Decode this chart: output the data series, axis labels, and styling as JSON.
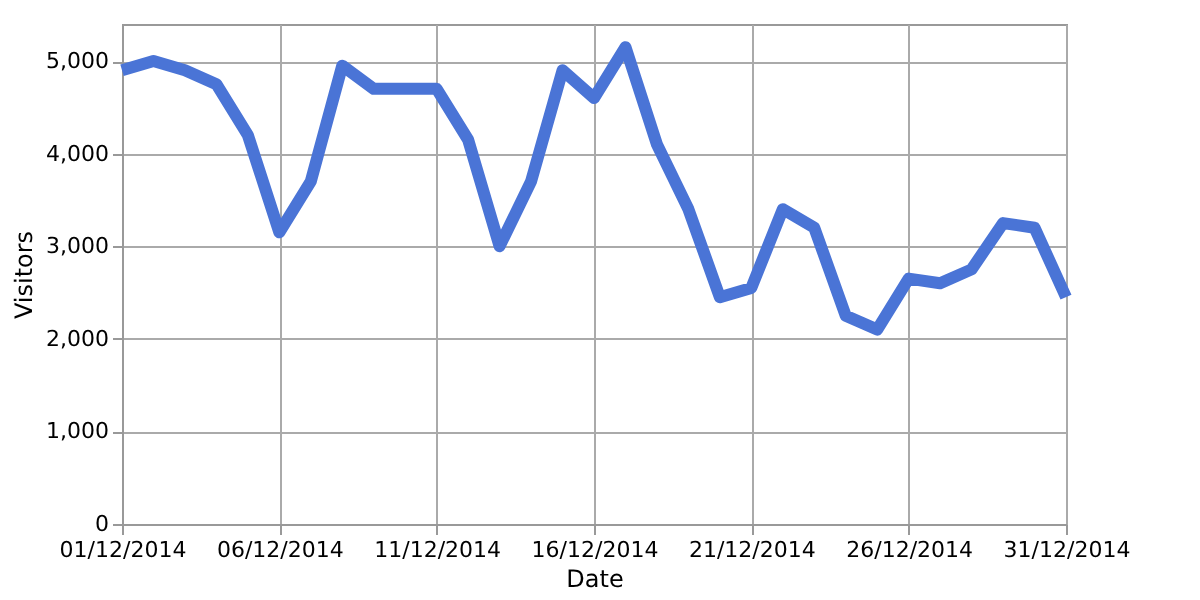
{
  "chart_data": {
    "type": "line",
    "xlabel": "Date",
    "ylabel": "Visitors",
    "x": [
      "2014-12-01",
      "2014-12-02",
      "2014-12-03",
      "2014-12-04",
      "2014-12-05",
      "2014-12-06",
      "2014-12-07",
      "2014-12-08",
      "2014-12-09",
      "2014-12-10",
      "2014-12-11",
      "2014-12-12",
      "2014-12-13",
      "2014-12-14",
      "2014-12-15",
      "2014-12-16",
      "2014-12-17",
      "2014-12-18",
      "2014-12-19",
      "2014-12-20",
      "2014-12-21",
      "2014-12-22",
      "2014-12-23",
      "2014-12-24",
      "2014-12-25",
      "2014-12-26",
      "2014-12-27",
      "2014-12-28",
      "2014-12-29",
      "2014-12-30",
      "2014-12-31"
    ],
    "series": [
      {
        "color": "#4a74d6",
        "values": [
          4900,
          5000,
          4900,
          4750,
          4200,
          3150,
          3700,
          4950,
          4700,
          4700,
          4700,
          4150,
          3000,
          3700,
          4900,
          4600,
          5150,
          4100,
          3400,
          2450,
          2550,
          3400,
          3200,
          2250,
          2100,
          2650,
          2600,
          2750,
          3250,
          3200,
          2450
        ]
      }
    ],
    "xlim": [
      "2014-12-01",
      "2014-12-31"
    ],
    "xticks": [
      {
        "value": "2014-12-01",
        "label": "01/12/2014"
      },
      {
        "value": "2014-12-06",
        "label": "06/12/2014"
      },
      {
        "value": "2014-12-11",
        "label": "11/12/2014"
      },
      {
        "value": "2014-12-16",
        "label": "16/12/2014"
      },
      {
        "value": "2014-12-21",
        "label": "21/12/2014"
      },
      {
        "value": "2014-12-26",
        "label": "26/12/2014"
      },
      {
        "value": "2014-12-31",
        "label": "31/12/2014"
      }
    ],
    "ylim": [
      0,
      5400
    ],
    "yticks": [
      0,
      {
        "value": 1000,
        "label": "1,000"
      },
      {
        "value": 2000,
        "label": "2,000"
      },
      {
        "value": 3000,
        "label": "3,000"
      },
      {
        "value": 4000,
        "label": "4,000"
      },
      {
        "value": 5000,
        "label": "5,000"
      }
    ],
    "grid": true,
    "marker": "none",
    "line_style": "solid"
  }
}
